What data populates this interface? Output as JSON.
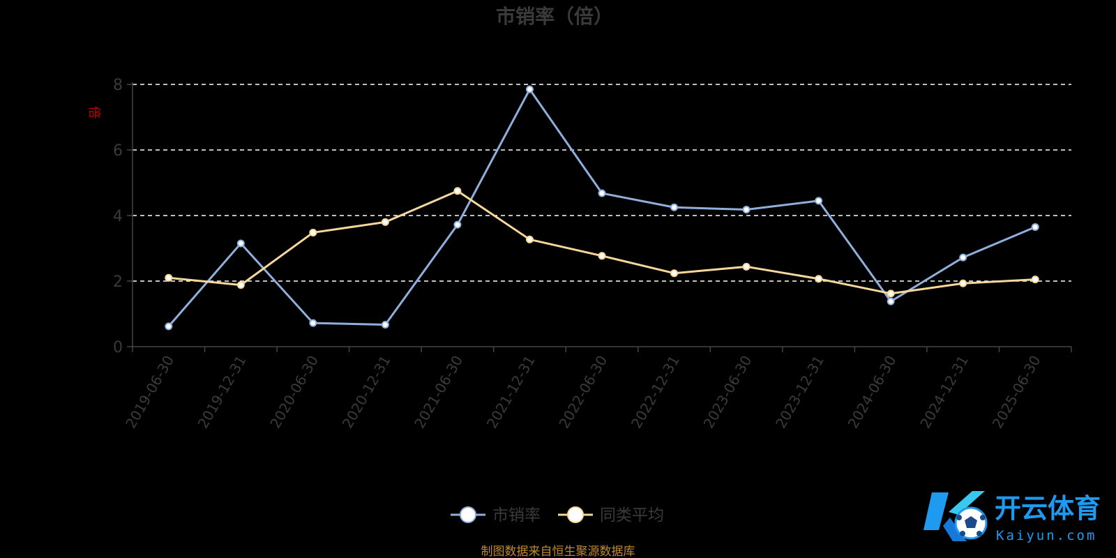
{
  "chart_data": {
    "type": "line",
    "title": "市销率（倍）",
    "ylabel": "倍",
    "xlabel": "",
    "ylim": [
      0,
      8
    ],
    "yticks": [
      0,
      2,
      4,
      6,
      8
    ],
    "grid": true,
    "legend_position": "bottom-center",
    "categories": [
      "2019-06-30",
      "2019-12-31",
      "2020-06-30",
      "2020-12-31",
      "2021-06-30",
      "2021-12-31",
      "2022-06-30",
      "2022-12-31",
      "2023-06-30",
      "2023-12-31",
      "2024-06-30",
      "2024-12-31",
      "2025-06-30"
    ],
    "series": [
      {
        "name": "市销率",
        "color": "#8fb0dc",
        "values": [
          0.62,
          3.15,
          0.72,
          0.67,
          3.72,
          7.85,
          4.68,
          4.25,
          4.18,
          4.45,
          1.38,
          2.72,
          3.65
        ]
      },
      {
        "name": "同类平均",
        "color": "#f8d89a",
        "values": [
          2.1,
          1.88,
          3.48,
          3.8,
          4.75,
          3.27,
          2.77,
          2.24,
          2.44,
          2.07,
          1.62,
          1.93,
          2.05
        ]
      }
    ],
    "source_note": "制图数据来自恒生聚源数据库"
  },
  "watermark": {
    "cn": "开云体育",
    "en": "Kaiyun.com"
  }
}
